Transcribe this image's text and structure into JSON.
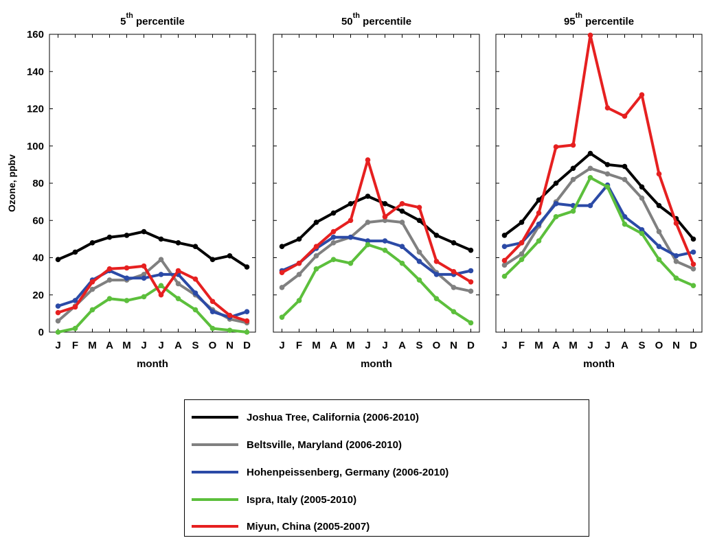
{
  "chart_data": [
    {
      "type": "line",
      "title_base": "5",
      "title_sup": "th",
      "title_rest": "percentile",
      "xlabel": "month",
      "ylabel": "Ozone, ppbv",
      "categories": [
        "J",
        "F",
        "M",
        "A",
        "M",
        "J",
        "J",
        "A",
        "S",
        "O",
        "N",
        "D"
      ],
      "ylim": [
        0,
        160
      ],
      "yticks": [
        0,
        20,
        40,
        60,
        80,
        100,
        120,
        140,
        160
      ],
      "series": [
        {
          "name": "Joshua Tree, California (2006-2010)",
          "color": "#000000",
          "values": [
            39,
            43,
            48,
            51,
            52,
            54,
            50,
            48,
            46,
            39,
            41,
            35
          ]
        },
        {
          "name": "Beltsville, Maryland (2006-2010)",
          "color": "#808080",
          "values": [
            6,
            14,
            23,
            28,
            28,
            31,
            39,
            26,
            20,
            12,
            7,
            5
          ]
        },
        {
          "name": "Hohenpeissenberg, Germany (2006-2010)",
          "color": "#2b4aa6",
          "values": [
            14,
            17,
            28,
            33,
            29,
            29,
            31,
            31,
            21,
            11,
            8,
            11
          ]
        },
        {
          "name": "Ispra, Italy (2005-2010)",
          "color": "#5cbf3c",
          "values": [
            0,
            2,
            12,
            18,
            17,
            19,
            25,
            18,
            12,
            2,
            1,
            0
          ]
        },
        {
          "name": "Miyun, China (2005-2007)",
          "color": "#e62020",
          "values": [
            10.5,
            13.5,
            27,
            34,
            34.5,
            35.5,
            20,
            33,
            28.5,
            16.5,
            9,
            6
          ]
        }
      ]
    },
    {
      "type": "line",
      "title_base": "50",
      "title_sup": "th",
      "title_rest": "percentile",
      "xlabel": "month",
      "ylabel": "",
      "categories": [
        "J",
        "F",
        "M",
        "A",
        "M",
        "J",
        "J",
        "A",
        "S",
        "O",
        "N",
        "D"
      ],
      "ylim": [
        0,
        160
      ],
      "yticks": [
        0,
        20,
        40,
        60,
        80,
        100,
        120,
        140,
        160
      ],
      "series": [
        {
          "name": "Joshua Tree, California (2006-2010)",
          "color": "#000000",
          "values": [
            46,
            50,
            59,
            64,
            69,
            73,
            69,
            65,
            60,
            52,
            48,
            44
          ]
        },
        {
          "name": "Beltsville, Maryland (2006-2010)",
          "color": "#808080",
          "values": [
            24,
            31,
            41,
            48,
            51,
            59,
            60,
            59,
            43,
            32,
            24,
            22
          ]
        },
        {
          "name": "Hohenpeissenberg, Germany (2006-2010)",
          "color": "#2b4aa6",
          "values": [
            33,
            37,
            45,
            51,
            51,
            49,
            49,
            46,
            38,
            31,
            31,
            33
          ]
        },
        {
          "name": "Ispra, Italy (2005-2010)",
          "color": "#5cbf3c",
          "values": [
            8,
            17,
            34,
            39,
            37,
            47,
            44,
            37,
            28,
            18,
            11,
            5
          ]
        },
        {
          "name": "Miyun, China (2005-2007)",
          "color": "#e62020",
          "values": [
            32,
            37,
            46,
            54,
            60,
            92.5,
            62,
            69,
            67,
            38,
            32.5,
            27
          ]
        }
      ]
    },
    {
      "type": "line",
      "title_base": "95",
      "title_sup": "th",
      "title_rest": "percentile",
      "xlabel": "month",
      "ylabel": "",
      "categories": [
        "J",
        "F",
        "M",
        "A",
        "M",
        "J",
        "J",
        "A",
        "S",
        "O",
        "N",
        "D"
      ],
      "ylim": [
        0,
        160
      ],
      "yticks": [
        0,
        20,
        40,
        60,
        80,
        100,
        120,
        140,
        160
      ],
      "series": [
        {
          "name": "Joshua Tree, California (2006-2010)",
          "color": "#000000",
          "values": [
            52,
            59,
            71,
            80,
            88,
            96,
            90,
            89,
            78,
            68,
            61,
            50
          ]
        },
        {
          "name": "Beltsville, Maryland (2006-2010)",
          "color": "#808080",
          "values": [
            36,
            42,
            57,
            70,
            82,
            88,
            85,
            82,
            72,
            54,
            38,
            34
          ]
        },
        {
          "name": "Hohenpeissenberg, Germany (2006-2010)",
          "color": "#2b4aa6",
          "values": [
            46,
            48,
            58,
            69,
            68,
            68,
            79,
            62,
            55,
            46,
            41,
            43
          ]
        },
        {
          "name": "Ispra, Italy (2005-2010)",
          "color": "#5cbf3c",
          "values": [
            30,
            39,
            49,
            62,
            65,
            83,
            78,
            58,
            53,
            39,
            29,
            25
          ]
        },
        {
          "name": "Miyun, China (2005-2007)",
          "color": "#e62020",
          "values": [
            38.5,
            48,
            64,
            99.5,
            100.5,
            159.5,
            120.5,
            116,
            127.5,
            85,
            58.5,
            36.5
          ]
        }
      ]
    }
  ],
  "legend": {
    "items": [
      {
        "label": "Joshua Tree, California (2006-2010)",
        "color": "#000000"
      },
      {
        "label": "Beltsville, Maryland (2006-2010)",
        "color": "#808080"
      },
      {
        "label": "Hohenpeissenberg, Germany (2006-2010)",
        "color": "#2b4aa6"
      },
      {
        "label": "Ispra, Italy (2005-2010)",
        "color": "#5cbf3c"
      },
      {
        "label": "Miyun, China (2005-2007)",
        "color": "#e62020"
      }
    ]
  }
}
